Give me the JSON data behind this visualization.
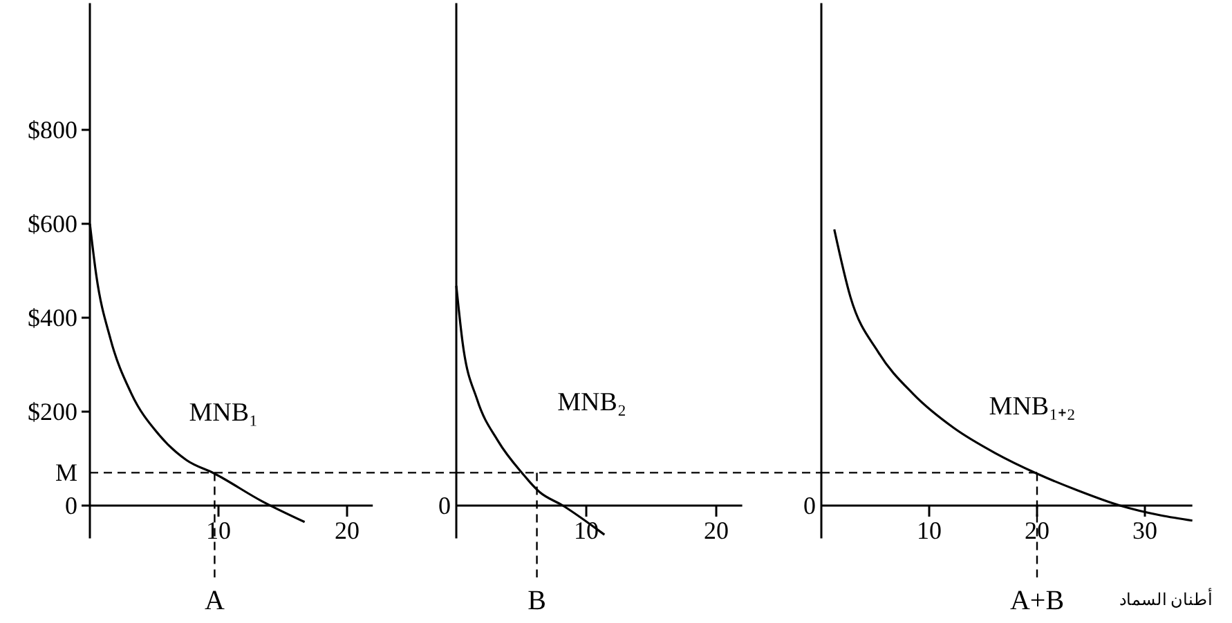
{
  "chart_data": [
    {
      "type": "line",
      "x": [
        0,
        0.5,
        1.6,
        3.2,
        5.4,
        7.5,
        9.7,
        13.4,
        16.7
      ],
      "series": [
        {
          "name": "MNB₁",
          "color": "#000000",
          "values": [
            600,
            490,
            355,
            240,
            150,
            97,
            68,
            9,
            -35
          ]
        }
      ],
      "xlim": [
        0,
        22
      ],
      "ylim": [
        -70,
        1070
      ],
      "xticks": [
        10,
        20
      ],
      "yticks": [
        0,
        {
          "value": 70,
          "label": "M"
        },
        {
          "value": 200,
          "label": "$200"
        },
        {
          "value": 400,
          "label": "$400"
        },
        {
          "value": 600,
          "label": "$600"
        },
        {
          "value": 800,
          "label": "$800"
        }
      ],
      "ref_lines": [
        {
          "axis": "y",
          "value": 70,
          "label": null,
          "line_style": "dashed"
        },
        {
          "axis": "x",
          "value": 9.7,
          "label": "A",
          "line_style": "dashed"
        }
      ]
    },
    {
      "type": "line",
      "x": [
        0,
        0.5,
        1.6,
        3.2,
        5.1,
        6.4,
        8.2,
        11.4
      ],
      "series": [
        {
          "name": "MNB₂",
          "color": "#000000",
          "values": [
            468,
            344,
            226,
            138,
            68,
            29,
            0,
            -62
          ]
        }
      ],
      "xlim": [
        0,
        22
      ],
      "ylim": [
        -70,
        1070
      ],
      "xticks": [
        10,
        20
      ],
      "tick_labels": "x",
      "annotations": [
        "0"
      ],
      "ref_lines": [
        {
          "axis": "y",
          "value": 70,
          "label": null,
          "line_style": "dashed"
        },
        {
          "axis": "x",
          "value": 6.2,
          "label": "B",
          "line_style": "dashed"
        }
      ]
    },
    {
      "type": "line",
      "x": [
        1.2,
        2.7,
        5.3,
        8.5,
        12.3,
        16.1,
        20,
        23.8,
        27.7,
        31.5,
        34.4
      ],
      "series": [
        {
          "name": "MNB₁₊₂",
          "color": "#000000",
          "values": [
            588,
            444,
            326,
            238,
            165,
            112,
            68,
            32,
            0,
            -21,
            -32
          ]
        }
      ],
      "xlim": [
        0,
        34.4
      ],
      "ylim": [
        -70,
        1070
      ],
      "xticks": [
        10,
        20,
        30
      ],
      "tick_labels": "x",
      "annotations": [
        "0"
      ],
      "xlabel": "أطنان السماد",
      "ref_lines": [
        {
          "axis": "y",
          "value": 70,
          "label": null,
          "line_style": "dashed"
        },
        {
          "axis": "x",
          "value": 20,
          "label": "A+B",
          "line_style": "dashed"
        }
      ]
    }
  ]
}
